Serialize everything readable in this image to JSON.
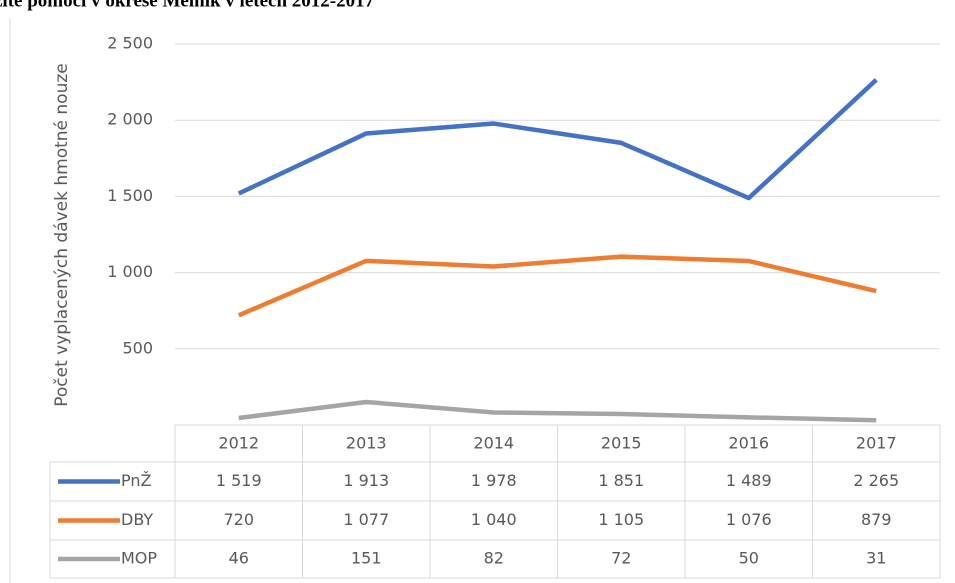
{
  "chart_data": {
    "type": "line",
    "title": "žité pomoci v okrese Mělník v letech 2012-2017",
    "y_label": "Počet vyplacených dávek hmotné nouze",
    "categories": [
      "2012",
      "2013",
      "2014",
      "2015",
      "2016",
      "2017"
    ],
    "series": [
      {
        "name": "PnŽ",
        "color": "#4472c4",
        "values": [
          1519,
          1913,
          1978,
          1851,
          1489,
          2265
        ],
        "value_labels": [
          "1 519",
          "1 913",
          "1 978",
          "1 851",
          "1 489",
          "2 265"
        ]
      },
      {
        "name": "DBY",
        "color": "#ed7d31",
        "values": [
          720,
          1077,
          1040,
          1105,
          1076,
          879
        ],
        "value_labels": [
          "720",
          "1 077",
          "1 040",
          "1 105",
          "1 076",
          "879"
        ]
      },
      {
        "name": "MOP",
        "color": "#a5a5a5",
        "values": [
          46,
          151,
          82,
          72,
          50,
          31
        ],
        "value_labels": [
          "46",
          "151",
          "82",
          "72",
          "50",
          "31"
        ]
      }
    ],
    "ylim": [
      0,
      2500
    ],
    "yticks": [
      {
        "value": 500,
        "label": "500"
      },
      {
        "value": 1000,
        "label": "1 000"
      },
      {
        "value": 1500,
        "label": "1 500"
      },
      {
        "value": 2000,
        "label": "2 000"
      },
      {
        "value": 2500,
        "label": "2 500"
      }
    ],
    "grid": true
  }
}
